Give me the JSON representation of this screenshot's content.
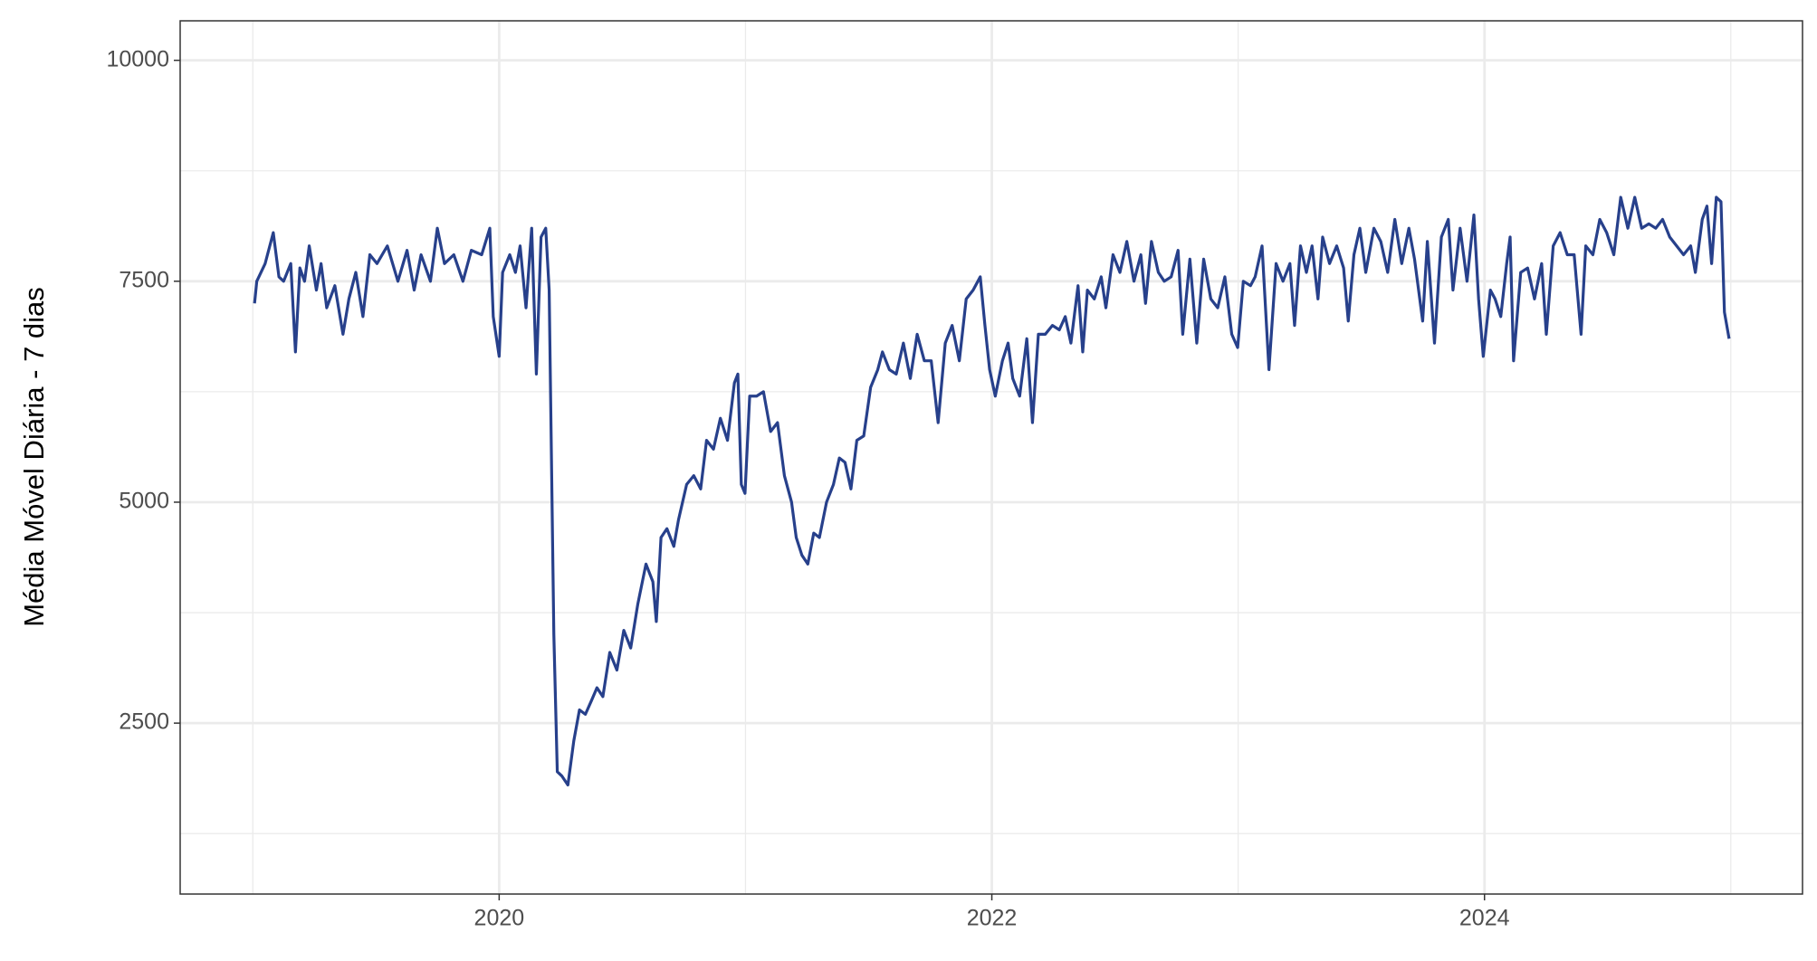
{
  "chart_data": {
    "type": "line",
    "ylabel": "Média Móvel Diária - 7 dias",
    "xlim": [
      2018.705,
      2025.291
    ],
    "xticks": [
      2020,
      2022,
      2024
    ],
    "xminor_ticks": [
      2019,
      2021,
      2023,
      2025
    ],
    "ylim": [
      566,
      10447
    ],
    "yticks": [
      2500,
      5000,
      7500,
      10000
    ],
    "yminor_ticks": [
      1250,
      3750,
      6250,
      8750
    ],
    "grid": true,
    "series": [
      {
        "color": "#27408b",
        "x": [
          2019.007,
          2019.016,
          2019.05,
          2019.083,
          2019.106,
          2019.125,
          2019.154,
          2019.173,
          2019.191,
          2019.21,
          2019.229,
          2019.258,
          2019.277,
          2019.3,
          2019.333,
          2019.366,
          2019.39,
          2019.418,
          2019.447,
          2019.475,
          2019.504,
          2019.546,
          2019.589,
          2019.626,
          2019.655,
          2019.683,
          2019.721,
          2019.749,
          2019.778,
          2019.816,
          2019.853,
          2019.887,
          2019.929,
          2019.962,
          2019.976,
          2020.0,
          2020.014,
          2020.043,
          2020.066,
          2020.085,
          2020.109,
          2020.132,
          2020.151,
          2020.17,
          2020.189,
          2020.203,
          2020.222,
          2020.236,
          2020.255,
          2020.279,
          2020.303,
          2020.326,
          2020.35,
          2020.374,
          2020.397,
          2020.421,
          2020.449,
          2020.478,
          2020.506,
          2020.534,
          2020.563,
          2020.596,
          2020.624,
          2020.638,
          2020.657,
          2020.681,
          2020.709,
          2020.728,
          2020.761,
          2020.79,
          2020.818,
          2020.842,
          2020.87,
          2020.898,
          2020.927,
          2020.955,
          2020.969,
          2020.983,
          2020.998,
          2021.017,
          2021.045,
          2021.073,
          2021.102,
          2021.13,
          2021.158,
          2021.187,
          2021.206,
          2021.229,
          2021.253,
          2021.277,
          2021.3,
          2021.329,
          2021.357,
          2021.381,
          2021.404,
          2021.428,
          2021.452,
          2021.48,
          2021.508,
          2021.537,
          2021.556,
          2021.584,
          2021.612,
          2021.641,
          2021.669,
          2021.697,
          2021.726,
          2021.754,
          2021.782,
          2021.811,
          2021.839,
          2021.868,
          2021.896,
          2021.924,
          2021.953,
          2021.972,
          2021.991,
          2022.014,
          2022.043,
          2022.066,
          2022.085,
          2022.113,
          2022.142,
          2022.165,
          2022.189,
          2022.217,
          2022.246,
          2022.274,
          2022.298,
          2022.321,
          2022.35,
          2022.369,
          2022.388,
          2022.416,
          2022.444,
          2022.463,
          2022.492,
          2022.52,
          2022.548,
          2022.577,
          2022.605,
          2022.624,
          2022.648,
          2022.676,
          2022.7,
          2022.728,
          2022.756,
          2022.775,
          2022.804,
          2022.832,
          2022.86,
          2022.889,
          2022.917,
          2022.946,
          2022.974,
          2022.998,
          2023.021,
          2023.05,
          2023.069,
          2023.097,
          2023.125,
          2023.154,
          2023.182,
          2023.21,
          2023.229,
          2023.253,
          2023.277,
          2023.3,
          2023.324,
          2023.343,
          2023.371,
          2023.4,
          2023.428,
          2023.447,
          2023.47,
          2023.494,
          2023.518,
          2023.551,
          2023.579,
          2023.607,
          2023.636,
          2023.664,
          2023.693,
          2023.716,
          2023.749,
          2023.768,
          2023.797,
          2023.825,
          2023.853,
          2023.872,
          2023.901,
          2023.929,
          2023.957,
          2023.976,
          2023.995,
          2024.024,
          2024.043,
          2024.066,
          2024.09,
          2024.104,
          2024.118,
          2024.147,
          2024.175,
          2024.203,
          2024.232,
          2024.251,
          2024.279,
          2024.307,
          2024.336,
          2024.364,
          2024.392,
          2024.411,
          2024.44,
          2024.468,
          2024.496,
          2024.525,
          2024.553,
          2024.582,
          2024.61,
          2024.638,
          2024.667,
          2024.695,
          2024.723,
          2024.752,
          2024.78,
          2024.808,
          2024.837,
          2024.856,
          2024.884,
          2024.903,
          2024.922,
          2024.941,
          2024.96,
          2024.974,
          2024.993
        ],
        "values": [
          7250,
          7500,
          7700,
          8050,
          7550,
          7500,
          7700,
          6700,
          7650,
          7500,
          7900,
          7400,
          7700,
          7200,
          7450,
          6900,
          7300,
          7600,
          7100,
          7800,
          7700,
          7900,
          7500,
          7850,
          7400,
          7800,
          7500,
          8100,
          7700,
          7800,
          7500,
          7850,
          7800,
          8100,
          7100,
          6650,
          7600,
          7800,
          7600,
          7900,
          7200,
          8100,
          6450,
          8000,
          8100,
          7400,
          3500,
          1950,
          1900,
          1800,
          2300,
          2650,
          2600,
          2750,
          2900,
          2800,
          3300,
          3100,
          3550,
          3350,
          3850,
          4300,
          4100,
          3650,
          4600,
          4700,
          4500,
          4800,
          5200,
          5300,
          5150,
          5700,
          5600,
          5950,
          5700,
          6350,
          6450,
          5200,
          5100,
          6200,
          6200,
          6250,
          5800,
          5900,
          5300,
          5000,
          4600,
          4400,
          4300,
          4650,
          4600,
          5000,
          5200,
          5500,
          5450,
          5150,
          5700,
          5750,
          6300,
          6500,
          6700,
          6500,
          6450,
          6800,
          6400,
          6900,
          6600,
          6600,
          5900,
          6800,
          7000,
          6600,
          7300,
          7400,
          7550,
          7000,
          6500,
          6200,
          6600,
          6800,
          6400,
          6200,
          6850,
          5900,
          6900,
          6900,
          7000,
          6950,
          7100,
          6800,
          7450,
          6700,
          7400,
          7300,
          7550,
          7200,
          7800,
          7600,
          7950,
          7500,
          7800,
          7250,
          7950,
          7600,
          7500,
          7550,
          7850,
          6900,
          7750,
          6800,
          7750,
          7300,
          7200,
          7550,
          6900,
          6750,
          7500,
          7450,
          7550,
          7900,
          6500,
          7700,
          7500,
          7700,
          7000,
          7900,
          7600,
          7900,
          7300,
          8000,
          7700,
          7900,
          7650,
          7050,
          7800,
          8100,
          7600,
          8100,
          7950,
          7600,
          8200,
          7700,
          8100,
          7750,
          7050,
          7950,
          6800,
          8000,
          8200,
          7400,
          8100,
          7500,
          8250,
          7300,
          6650,
          7400,
          7300,
          7100,
          7700,
          8000,
          6600,
          7600,
          7650,
          7300,
          7700,
          6900,
          7900,
          8050,
          7800,
          7800,
          6900,
          7900,
          7800,
          8200,
          8050,
          7800,
          8450,
          8100,
          8450,
          8100,
          8150,
          8100,
          8200,
          8000,
          7900,
          7800,
          7900,
          7600,
          8200,
          8350,
          7700,
          8450,
          8400,
          7150,
          6850
        ]
      }
    ]
  }
}
